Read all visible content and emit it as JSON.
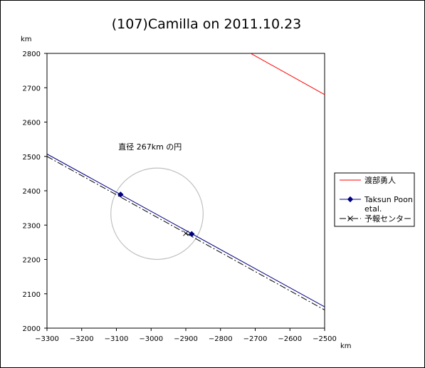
{
  "chart_data": {
    "type": "line",
    "title": "(107)Camilla on 2011.10.23",
    "xlabel": "km",
    "ylabel": "km",
    "xlim": [
      -3300,
      -2500
    ],
    "ylim": [
      2000,
      2800
    ],
    "xticks": [
      -3300,
      -3200,
      -3100,
      -3000,
      -2900,
      -2800,
      -2700,
      -2600,
      -2500
    ],
    "yticks": [
      2000,
      2100,
      2200,
      2300,
      2400,
      2500,
      2600,
      2700,
      2800
    ],
    "grid": false,
    "legend_position": "right",
    "series": [
      {
        "name": "渡部勇人",
        "color": "#ff0000",
        "style": "solid",
        "marker": "none",
        "x": [
          -2722,
          -2500
        ],
        "y": [
          2805,
          2680
        ]
      },
      {
        "name": "Taksun Poon etal.",
        "color": "#000080",
        "style": "solid",
        "marker": "diamond",
        "x": [
          -3300,
          -2500
        ],
        "y": [
          2507,
          2062
        ],
        "points_x": [
          -3088,
          -2883
        ],
        "points_y": [
          2389,
          2274
        ]
      },
      {
        "name": "予報センター",
        "color": "#000000",
        "style": "dashdot",
        "marker": "x",
        "x": [
          -3300,
          -2500
        ],
        "y": [
          2500,
          2053
        ],
        "points_x": [
          -2900
        ],
        "points_y": [
          2276
        ]
      }
    ],
    "circle": {
      "cx": -2983,
      "cy": 2333,
      "r": 133,
      "color": "#c0c0c0"
    },
    "annotations": [
      {
        "text": "直径 267km の円",
        "x": -3003,
        "y": 2520
      }
    ]
  }
}
